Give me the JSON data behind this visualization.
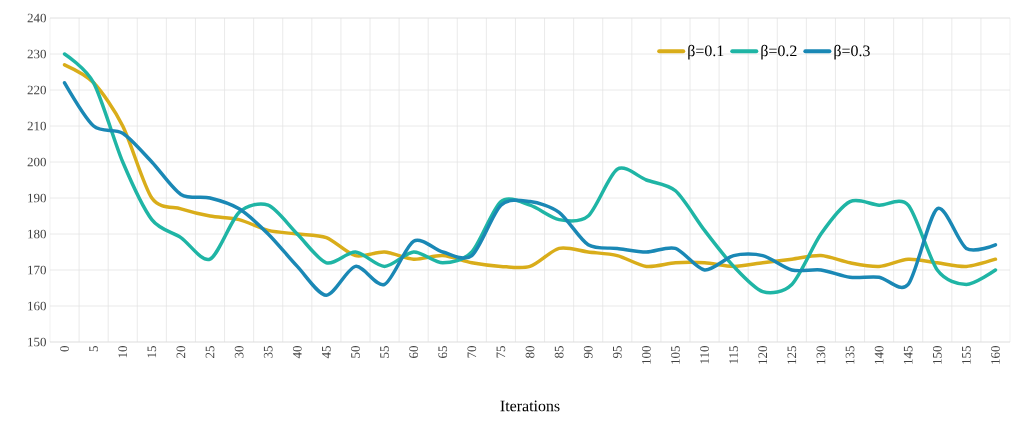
{
  "chart_data": {
    "type": "line",
    "xlabel": "Iterations",
    "categories": [
      "0",
      "5",
      "10",
      "15",
      "20",
      "25",
      "30",
      "35",
      "40",
      "45",
      "50",
      "55",
      "60",
      "65",
      "70",
      "75",
      "80",
      "85",
      "90",
      "95",
      "100",
      "105",
      "110",
      "115",
      "120",
      "125",
      "130",
      "135",
      "140",
      "145",
      "150",
      "155",
      "160"
    ],
    "series": [
      {
        "name": "β=0.1",
        "color": "#d9ad1a",
        "values": [
          227,
          222,
          210,
          190,
          187,
          185,
          184,
          181,
          180,
          179,
          174,
          175,
          173,
          174,
          172,
          171,
          171,
          176,
          175,
          174,
          171,
          172,
          172,
          171,
          172,
          173,
          174,
          172,
          171,
          173,
          172,
          171,
          173
        ]
      },
      {
        "name": "β=0.2",
        "color": "#1fb5a5",
        "values": [
          230,
          222,
          200,
          184,
          179,
          173,
          186,
          188,
          180,
          172,
          175,
          171,
          175,
          172,
          175,
          189,
          188,
          184,
          185,
          198,
          195,
          192,
          181,
          171,
          164,
          166,
          180,
          189,
          188,
          188,
          170,
          166,
          170
        ]
      },
      {
        "name": "β=0.3",
        "color": "#1a88b5",
        "values": [
          222,
          210,
          208,
          200,
          191,
          190,
          187,
          180,
          171,
          163,
          171,
          166,
          178,
          175,
          174,
          188,
          189,
          186,
          177,
          176,
          175,
          176,
          170,
          174,
          174,
          170,
          170,
          168,
          168,
          166,
          187,
          176,
          177
        ]
      }
    ],
    "ylim": [
      150,
      240
    ],
    "yticks": [
      150,
      160,
      170,
      180,
      190,
      200,
      210,
      220,
      230,
      240
    ],
    "grid": true,
    "legend": "top right",
    "marker": "none",
    "line_style": "solid"
  }
}
